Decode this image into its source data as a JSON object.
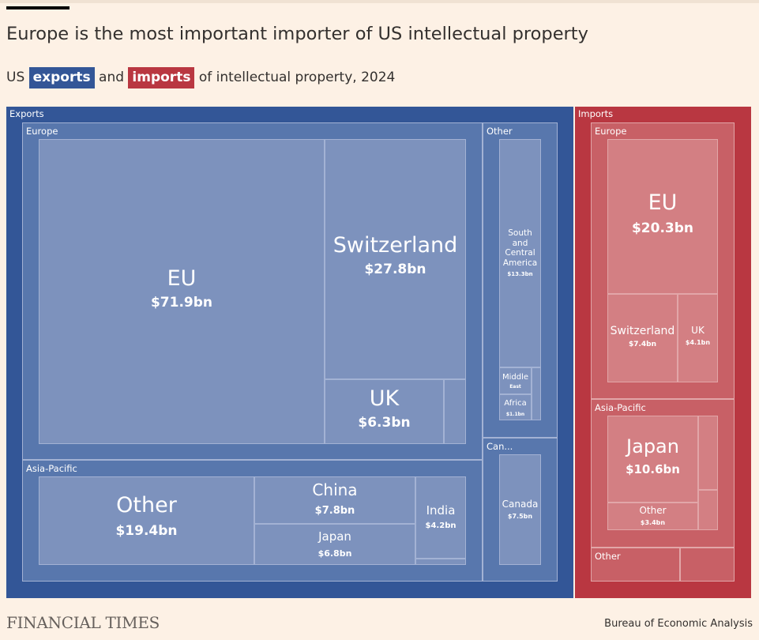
{
  "title": "Europe is the most important importer of US intellectual property",
  "subtitle": {
    "prefix": "US",
    "exports_label": "exports",
    "connector": "and",
    "imports_label": "imports",
    "suffix": "of intellectual property, 2024"
  },
  "footer": {
    "brand": "FINANCIAL TIMES",
    "source": "Bureau of Economic Analysis"
  },
  "colors": {
    "export_outer": "#335697",
    "export_mid": "#5877ad",
    "export_leaf": "#7d92bd",
    "import_outer": "#b93741",
    "import_mid": "#c86066",
    "import_leaf": "#d37f83",
    "cell_border": "#a3b2d4",
    "import_cell_border": "#e2a6a8"
  },
  "chart_data": {
    "type": "treemap",
    "unit": "$bn",
    "groups": [
      {
        "name": "Exports",
        "regions": [
          {
            "name": "Europe",
            "items": [
              {
                "name": "EU",
                "value": 71.9,
                "value_label": "$71.9bn"
              },
              {
                "name": "Switzerland",
                "value": 27.8,
                "value_label": "$27.8bn"
              },
              {
                "name": "UK",
                "value": 6.3,
                "value_label": "$6.3bn"
              },
              {
                "name": "",
                "value": 1.5,
                "value_label": ""
              }
            ]
          },
          {
            "name": "Asia-Pacific",
            "items": [
              {
                "name": "Other",
                "value": 19.4,
                "value_label": "$19.4bn"
              },
              {
                "name": "China",
                "value": 7.8,
                "value_label": "$7.8bn"
              },
              {
                "name": "Japan",
                "value": 6.8,
                "value_label": "$6.8bn"
              },
              {
                "name": "India",
                "value": 4.2,
                "value_label": "$4.2bn"
              },
              {
                "name": "",
                "value": 0.3,
                "value_label": ""
              }
            ]
          },
          {
            "name": "Other",
            "items": [
              {
                "name": "South and Central America",
                "value": 13.3,
                "value_label": "$13.3bn"
              },
              {
                "name": "Middle East",
                "value": 1.1,
                "value_label": ""
              },
              {
                "name": "Africa",
                "value": 1.1,
                "value_label": "$1.1bn"
              },
              {
                "name": "",
                "value": 0.4,
                "value_label": ""
              }
            ]
          },
          {
            "name": "Can...",
            "items": [
              {
                "name": "Canada",
                "value": 7.5,
                "value_label": "$7.5bn"
              }
            ]
          }
        ]
      },
      {
        "name": "Imports",
        "regions": [
          {
            "name": "Europe",
            "items": [
              {
                "name": "EU",
                "value": 20.3,
                "value_label": "$20.3bn"
              },
              {
                "name": "Switzerland",
                "value": 7.4,
                "value_label": "$7.4bn"
              },
              {
                "name": "UK",
                "value": 4.1,
                "value_label": "$4.1bn"
              }
            ]
          },
          {
            "name": "Asia-Pacific",
            "items": [
              {
                "name": "Japan",
                "value": 10.6,
                "value_label": "$10.6bn"
              },
              {
                "name": "Other",
                "value": 3.4,
                "value_label": "$3.4bn"
              },
              {
                "name": "",
                "value": 1.2,
                "value_label": ""
              },
              {
                "name": "",
                "value": 0.6,
                "value_label": ""
              }
            ]
          },
          {
            "name": "Other",
            "items": [
              {
                "name": "",
                "value": 4.6,
                "value_label": ""
              },
              {
                "name": "",
                "value": 2.9,
                "value_label": ""
              }
            ]
          }
        ]
      }
    ]
  }
}
